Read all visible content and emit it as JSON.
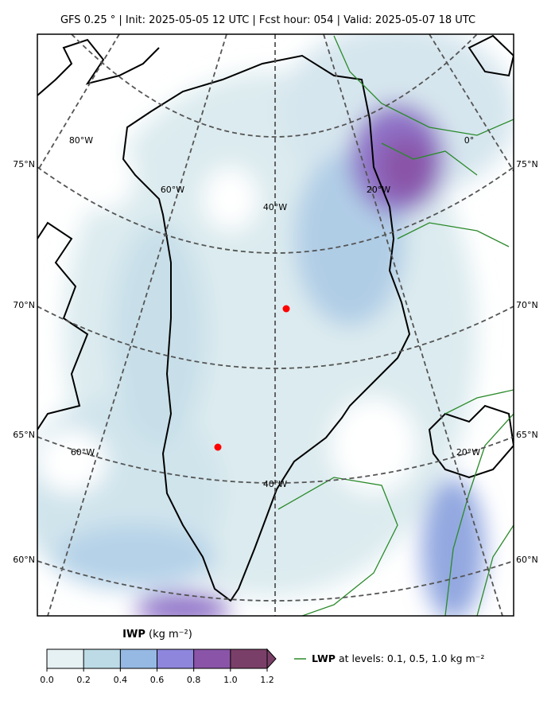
{
  "title": "GFS 0.25 °  |  Init: 2025-05-05 12 UTC  |  Fcst hour: 054  |  Valid: 2025-05-07 18 UTC",
  "map": {
    "lat_labels": [
      "75°N",
      "70°N",
      "65°N",
      "60°N"
    ],
    "lon_labels": [
      "80°W",
      "60°W",
      "40°W",
      "20°W",
      "0°",
      "60°W",
      "40°W",
      "20°W"
    ]
  },
  "colorbar": {
    "label": "IWP",
    "units": "(kg m⁻²)",
    "lim": [
      0,
      1.2
    ],
    "ticks": [
      {
        "value": 0,
        "label": "0.0"
      },
      {
        "value": 0.2,
        "label": "0.2"
      },
      {
        "value": 0.4,
        "label": "0.4"
      },
      {
        "value": 0.6,
        "label": "0.6"
      },
      {
        "value": 0.8,
        "label": "0.8"
      },
      {
        "value": 1.0,
        "label": "1.0"
      },
      {
        "value": 1.2,
        "label": "1.2"
      }
    ],
    "colors": [
      "#e6f1f3",
      "#bcdbe6",
      "#95b9e3",
      "#8e86dc",
      "#8a55a8",
      "#7a3f68"
    ]
  },
  "legend": {
    "label": "LWP",
    "text": "at levels: 0.1, 0.5, 1.0  kg m⁻²",
    "color": "#2a8a2a"
  }
}
